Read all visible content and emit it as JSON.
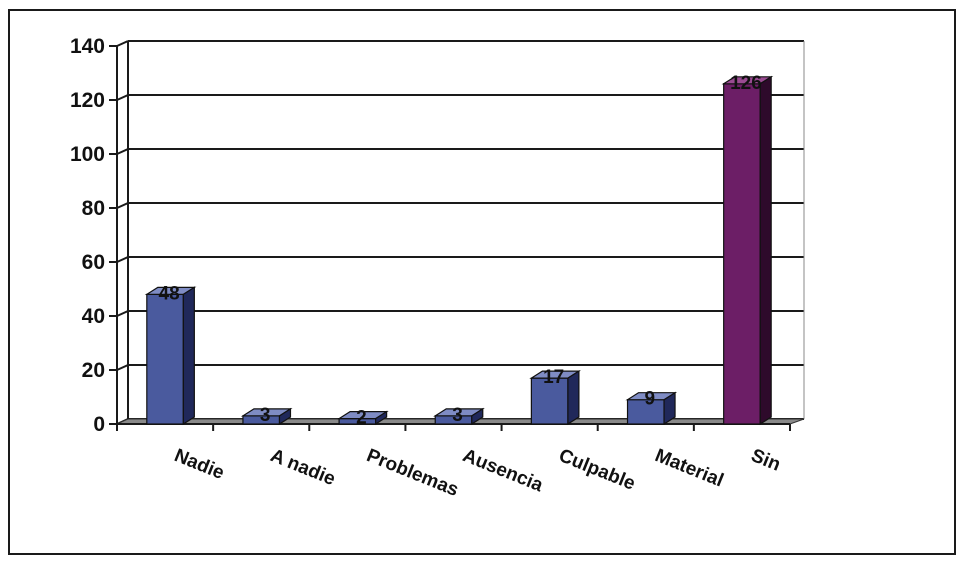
{
  "chart_data": {
    "type": "bar",
    "title": "",
    "xlabel": "",
    "ylabel": "",
    "categories": [
      "Nadie",
      "A nadie",
      "Problemas",
      "Ausencia",
      "Culpable",
      "Material",
      "Sin"
    ],
    "values": [
      48,
      3,
      2,
      3,
      17,
      9,
      126
    ],
    "yticks": [
      "0",
      "20",
      "40",
      "60",
      "80",
      "100",
      "120",
      "140"
    ],
    "ylim": [
      0,
      140
    ],
    "grid": true,
    "colors": {
      "default_front": "#4a5a9e",
      "default_top": "#7f8cc4",
      "default_side": "#20285a",
      "highlight_front": "#6c1e66",
      "highlight_top": "#9a4b92",
      "highlight_side": "#2e0a2b",
      "floor": "#8a8a8a",
      "grid": "#1a1a1a"
    },
    "highlight_index": 6
  }
}
